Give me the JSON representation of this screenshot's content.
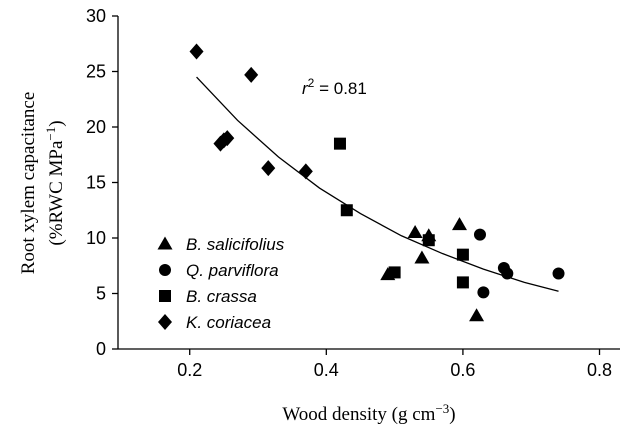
{
  "chart_data": {
    "type": "scatter",
    "x_label": [
      "Wood density (g cm",
      "−3",
      ")"
    ],
    "y_label": [
      "Root xylem capacitance",
      "(%RWC MPa",
      "−1",
      ")"
    ],
    "annotation": [
      "r",
      "2",
      " = 0.81"
    ],
    "xlim": [
      0.095,
      0.83
    ],
    "ylim": [
      0,
      30
    ],
    "xticks": [
      0.2,
      0.4,
      0.6,
      0.8
    ],
    "yticks": [
      0,
      5,
      10,
      15,
      20,
      25,
      30
    ],
    "legend": "lower left",
    "series": [
      {
        "name": "B. salicifolius",
        "marker": "triangle",
        "color": "#000000",
        "x": [
          0.49,
          0.53,
          0.54,
          0.55,
          0.595,
          0.62
        ],
        "values": [
          6.7,
          10.5,
          8.2,
          10.2,
          11.2,
          3.0
        ]
      },
      {
        "name": "Q. parviflora",
        "marker": "circle",
        "color": "#000000",
        "x": [
          0.625,
          0.63,
          0.66,
          0.665,
          0.74
        ],
        "values": [
          10.3,
          5.1,
          7.3,
          6.8,
          6.8
        ]
      },
      {
        "name": "B. crassa",
        "marker": "square",
        "color": "#000000",
        "x": [
          0.42,
          0.43,
          0.5,
          0.55,
          0.6,
          0.6
        ],
        "values": [
          18.5,
          12.5,
          6.9,
          9.8,
          8.5,
          6.0
        ]
      },
      {
        "name": "K. coriacea",
        "marker": "diamond",
        "color": "#000000",
        "x": [
          0.21,
          0.245,
          0.25,
          0.255,
          0.29,
          0.315,
          0.37
        ],
        "values": [
          26.8,
          18.5,
          18.8,
          19.0,
          24.7,
          16.3,
          16.0
        ]
      }
    ],
    "fit": {
      "color": "#000000",
      "x": [
        0.21,
        0.27,
        0.33,
        0.39,
        0.45,
        0.51,
        0.57,
        0.63,
        0.69,
        0.74
      ],
      "values": [
        24.5,
        20.6,
        17.3,
        14.5,
        12.2,
        10.2,
        8.6,
        7.2,
        6.0,
        5.2
      ]
    }
  }
}
